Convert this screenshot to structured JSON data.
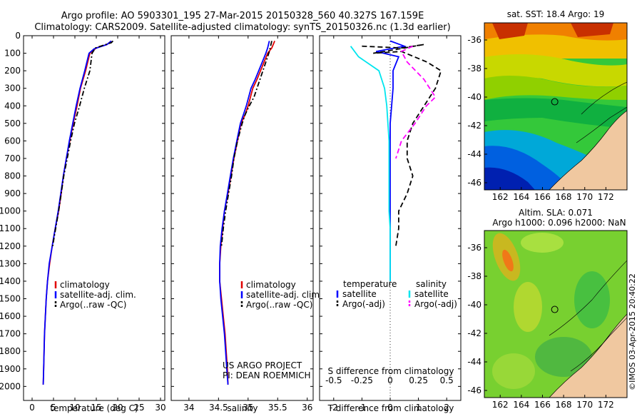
{
  "header": {
    "line1": "Argo profile: AO 5903301_195 27-Mar-2015 20150328_560 40.327S 167.159E",
    "line2": "Climatology: CARS2009. Satellite-adjusted climatology: synTS_20150326.nc (1.3d earlier)"
  },
  "colors": {
    "climatology": "#e00000",
    "satellite": "#0000ff",
    "argo": "#000000",
    "satellite_salinity": "#00e5ee",
    "argo_salinity": "#ff00ff",
    "land": "#f0c8a0"
  },
  "chart_data": [
    {
      "type": "line",
      "name": "temperature-profile",
      "xlabel": "temperature (deg C)",
      "ylabel": "",
      "xlim": [
        -2,
        31
      ],
      "ylim": [
        2080,
        0
      ],
      "xticks": [
        "0",
        "5",
        "10",
        "15",
        "20",
        "25",
        "30"
      ],
      "yticks": [
        "0",
        "100",
        "200",
        "300",
        "400",
        "500",
        "600",
        "700",
        "800",
        "900",
        "1000",
        "1100",
        "1200",
        "1300",
        "1400",
        "1500",
        "1600",
        "1700",
        "1800",
        "1900",
        "2000"
      ],
      "legend": [
        "climatology",
        "satellite-adj. clim.",
        "Argo(..raw -QC)"
      ],
      "series": [
        {
          "name": "climatology",
          "points": [
            [
              18.5,
              30
            ],
            [
              17.5,
              50
            ],
            [
              15,
              70
            ],
            [
              13.5,
              100
            ],
            [
              12.5,
              200
            ],
            [
              11.3,
              300
            ],
            [
              10.5,
              400
            ],
            [
              9.6,
              500
            ],
            [
              8.8,
              600
            ],
            [
              8,
              700
            ],
            [
              7.3,
              800
            ],
            [
              6.8,
              900
            ],
            [
              6.2,
              1000
            ],
            [
              5.4,
              1100
            ],
            [
              4.7,
              1200
            ],
            [
              4.1,
              1300
            ],
            [
              3.6,
              1400
            ],
            [
              3.3,
              1500
            ],
            [
              3.1,
              1600
            ],
            [
              2.9,
              1700
            ],
            [
              2.8,
              1800
            ],
            [
              2.7,
              1900
            ],
            [
              2.6,
              1990
            ]
          ]
        },
        {
          "name": "satellite-adj. clim.",
          "points": [
            [
              18.5,
              30
            ],
            [
              17.5,
              50
            ],
            [
              14.5,
              75
            ],
            [
              13.3,
              100
            ],
            [
              12.3,
              200
            ],
            [
              11.2,
              300
            ],
            [
              10.3,
              400
            ],
            [
              9.5,
              500
            ],
            [
              8.7,
              600
            ],
            [
              8,
              700
            ],
            [
              7.3,
              800
            ],
            [
              6.7,
              900
            ],
            [
              6.1,
              1000
            ],
            [
              5.4,
              1100
            ],
            [
              4.7,
              1200
            ],
            [
              4,
              1300
            ],
            [
              3.6,
              1400
            ],
            [
              3.3,
              1500
            ],
            [
              3.1,
              1600
            ],
            [
              2.9,
              1700
            ],
            [
              2.8,
              1800
            ],
            [
              2.7,
              1900
            ],
            [
              2.6,
              1990
            ]
          ]
        },
        {
          "name": "Argo(..raw -QC)",
          "points": [
            [
              18.9,
              30
            ],
            [
              18.5,
              40
            ],
            [
              16,
              60
            ],
            [
              14.8,
              70
            ],
            [
              14,
              100
            ],
            [
              13.5,
              200
            ],
            [
              12.2,
              300
            ],
            [
              11.1,
              400
            ],
            [
              9.9,
              500
            ],
            [
              9,
              600
            ],
            [
              8.2,
              700
            ],
            [
              7.4,
              800
            ],
            [
              6.8,
              900
            ],
            [
              6.2,
              1000
            ],
            [
              5.5,
              1100
            ],
            [
              4.8,
              1200
            ]
          ]
        }
      ]
    },
    {
      "type": "line",
      "name": "salinity-profile",
      "xlabel": "salinity",
      "xlim": [
        33.7,
        36.1
      ],
      "ylim": [
        2080,
        0
      ],
      "xticks": [
        "34",
        "34.5",
        "35",
        "35.5",
        "36"
      ],
      "legend": [
        "climatology",
        "satellite-adj. clim.",
        "Argo(..raw -QC)"
      ],
      "series": [
        {
          "name": "climatology",
          "points": [
            [
              35.45,
              30
            ],
            [
              35.4,
              70
            ],
            [
              35.33,
              100
            ],
            [
              35.27,
              150
            ],
            [
              35.15,
              250
            ],
            [
              35.08,
              300
            ],
            [
              35,
              400
            ],
            [
              34.95,
              450
            ],
            [
              34.88,
              500
            ],
            [
              34.82,
              600
            ],
            [
              34.76,
              700
            ],
            [
              34.71,
              800
            ],
            [
              34.66,
              900
            ],
            [
              34.6,
              1000
            ],
            [
              34.57,
              1100
            ],
            [
              34.54,
              1200
            ],
            [
              34.52,
              1300
            ],
            [
              34.52,
              1400
            ],
            [
              34.55,
              1500
            ],
            [
              34.58,
              1600
            ],
            [
              34.61,
              1700
            ],
            [
              34.63,
              1800
            ],
            [
              34.65,
              1900
            ],
            [
              34.66,
              1990
            ]
          ]
        },
        {
          "name": "satellite-adj. clim.",
          "points": [
            [
              35.36,
              30
            ],
            [
              35.33,
              70
            ],
            [
              35.3,
              100
            ],
            [
              35.24,
              150
            ],
            [
              35.12,
              250
            ],
            [
              35.05,
              300
            ],
            [
              34.97,
              400
            ],
            [
              34.92,
              450
            ],
            [
              34.87,
              500
            ],
            [
              34.81,
              600
            ],
            [
              34.75,
              700
            ],
            [
              34.7,
              800
            ],
            [
              34.65,
              900
            ],
            [
              34.6,
              1000
            ],
            [
              34.56,
              1100
            ],
            [
              34.53,
              1200
            ],
            [
              34.52,
              1300
            ],
            [
              34.52,
              1400
            ],
            [
              34.54,
              1500
            ],
            [
              34.57,
              1600
            ],
            [
              34.6,
              1700
            ],
            [
              34.62,
              1800
            ],
            [
              34.64,
              1900
            ],
            [
              34.66,
              1990
            ]
          ]
        },
        {
          "name": "Argo(..raw -QC)",
          "points": [
            [
              35.4,
              30
            ],
            [
              35.38,
              60
            ],
            [
              35.36,
              90
            ],
            [
              35.3,
              150
            ],
            [
              35.2,
              250
            ],
            [
              35.1,
              350
            ],
            [
              35.02,
              400
            ],
            [
              34.95,
              450
            ],
            [
              34.9,
              500
            ],
            [
              34.82,
              600
            ],
            [
              34.76,
              700
            ],
            [
              34.72,
              800
            ],
            [
              34.67,
              900
            ],
            [
              34.62,
              1000
            ],
            [
              34.58,
              1100
            ],
            [
              34.55,
              1200
            ]
          ]
        }
      ],
      "annotation_line1": "US ARGO PROJECT",
      "annotation_line2": "PI: DEAN ROEMMICH"
    },
    {
      "type": "line",
      "name": "difference-profile",
      "xlabel": "T difference from climatology",
      "xlabel_top": "S difference from climatology",
      "xlim": [
        -2.5,
        2.5
      ],
      "ylim": [
        2080,
        0
      ],
      "xticks": [
        "-2",
        "-1",
        "0",
        "1",
        "2"
      ],
      "xticks_top": [
        "-0.5",
        "-0.25",
        "0",
        "0.25",
        "0.5"
      ],
      "legend_temperature_title": "temperature",
      "legend_salinity_title": "salinity",
      "legend_temperature": [
        "satellite",
        "Argo(-adj)"
      ],
      "legend_salinity": [
        "satellite",
        "Argo(-adj)"
      ],
      "series": [
        {
          "name": "T satellite",
          "points": [
            [
              0,
              30
            ],
            [
              0.5,
              60
            ],
            [
              -0.5,
              90
            ],
            [
              0.3,
              120
            ],
            [
              0.1,
              200
            ],
            [
              0.1,
              300
            ],
            [
              0.05,
              400
            ],
            [
              0,
              500
            ],
            [
              0,
              600
            ],
            [
              0,
              700
            ],
            [
              0,
              800
            ],
            [
              0,
              900
            ],
            [
              0,
              1000
            ],
            [
              0,
              1100
            ],
            [
              0,
              1200
            ],
            [
              0,
              1300
            ],
            [
              0,
              1400
            ]
          ]
        },
        {
          "name": "T Argo(-adj)",
          "points": [
            [
              -1,
              60
            ],
            [
              0.4,
              70
            ],
            [
              1.2,
              50
            ],
            [
              -0.2,
              90
            ],
            [
              -0.6,
              100
            ],
            [
              0.4,
              90
            ],
            [
              1.3,
              150
            ],
            [
              1.8,
              200
            ],
            [
              1.6,
              300
            ],
            [
              1.2,
              400
            ],
            [
              0.8,
              500
            ],
            [
              0.6,
              600
            ],
            [
              0.6,
              700
            ],
            [
              0.8,
              800
            ],
            [
              0.6,
              900
            ],
            [
              0.3,
              1000
            ],
            [
              0.3,
              1100
            ],
            [
              0.2,
              1200
            ]
          ]
        },
        {
          "name": "S satellite",
          "points": [
            [
              -0.35,
              60
            ],
            [
              -0.28,
              120
            ],
            [
              -0.1,
              200
            ],
            [
              -0.05,
              300
            ],
            [
              -0.03,
              400
            ],
            [
              -0.02,
              500
            ],
            [
              -0.01,
              600
            ],
            [
              -0.01,
              700
            ],
            [
              -0.01,
              800
            ],
            [
              -0.01,
              900
            ],
            [
              -0.01,
              1000
            ],
            [
              0,
              1100
            ],
            [
              0,
              1200
            ],
            [
              0,
              1300
            ],
            [
              0,
              1400
            ]
          ]
        },
        {
          "name": "S Argo(-adj)",
          "points": [
            [
              0.2,
              60
            ],
            [
              0.1,
              90
            ],
            [
              0.15,
              150
            ],
            [
              0.3,
              250
            ],
            [
              0.4,
              350
            ],
            [
              0.32,
              400
            ],
            [
              0.22,
              500
            ],
            [
              0.1,
              600
            ],
            [
              0.05,
              700
            ]
          ]
        }
      ]
    }
  ],
  "maps": {
    "sst": {
      "title": "sat. SST: 18.4 Argo: 19",
      "xticks": [
        "162",
        "164",
        "166",
        "168",
        "170",
        "172"
      ],
      "yticks": [
        "-36",
        "-38",
        "-40",
        "-42",
        "-44",
        "-46"
      ]
    },
    "sla": {
      "title_line1": "Altim. SLA: 0.071",
      "title_line2": "Argo h1000: 0.096 h2000: NaN",
      "xticks": [
        "162",
        "164",
        "166",
        "168",
        "170",
        "172"
      ],
      "yticks": [
        "-36",
        "-38",
        "-40",
        "-42",
        "-44",
        "-46"
      ]
    }
  },
  "credit": "©IMOS 03-Apr-2015 20:40:22"
}
